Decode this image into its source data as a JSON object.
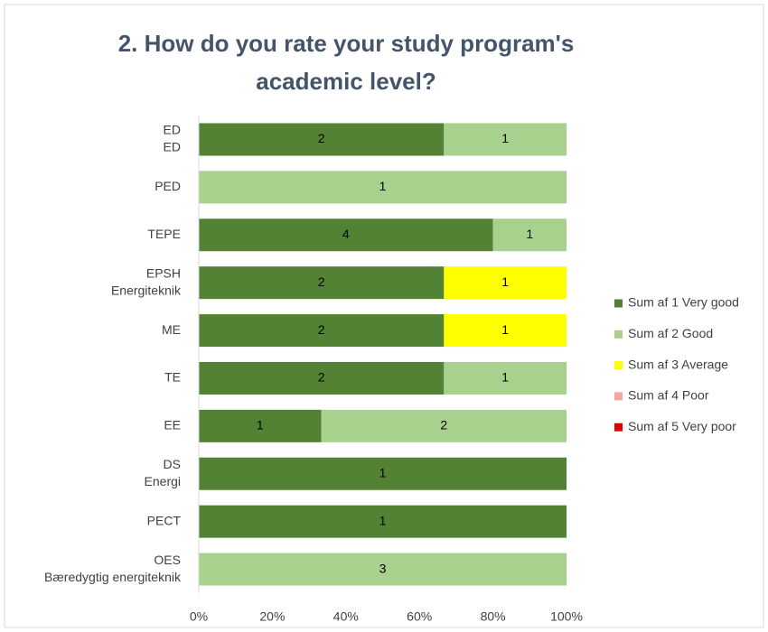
{
  "chart_data": {
    "type": "bar",
    "orientation": "horizontal",
    "stacking": "percent",
    "title": [
      "2. How do you rate your study program's",
      "academic level?"
    ],
    "categories": [
      [
        "ED",
        "ED"
      ],
      [
        "PED"
      ],
      [
        "TEPE"
      ],
      [
        "EPSH",
        "Energiteknik"
      ],
      [
        "ME"
      ],
      [
        "TE"
      ],
      [
        "EE"
      ],
      [
        "DS",
        "Energi"
      ],
      [
        "PECT"
      ],
      [
        "OES",
        "Bæredygtig energiteknik"
      ]
    ],
    "series": [
      {
        "name": "Sum af 1 Very good",
        "color": "#548235",
        "values": [
          2,
          null,
          4,
          2,
          2,
          2,
          1,
          1,
          1,
          null
        ]
      },
      {
        "name": "Sum af 2 Good",
        "color": "#a9d18e",
        "values": [
          1,
          1,
          1,
          null,
          null,
          1,
          2,
          null,
          null,
          3
        ]
      },
      {
        "name": "Sum af 3 Average",
        "color": "#ffff00",
        "values": [
          null,
          null,
          null,
          1,
          1,
          null,
          null,
          null,
          null,
          null
        ]
      },
      {
        "name": "Sum af 4 Poor",
        "color": "#f4a6a6",
        "values": [
          null,
          null,
          null,
          null,
          null,
          null,
          null,
          null,
          null,
          null
        ]
      },
      {
        "name": "Sum af 5 Very poor",
        "color": "#e00000",
        "values": [
          null,
          null,
          null,
          null,
          null,
          null,
          null,
          null,
          null,
          null
        ]
      }
    ],
    "xlim": [
      0,
      100
    ],
    "xticks": [
      {
        "value": 0,
        "label": "0%"
      },
      {
        "value": 20,
        "label": "20%"
      },
      {
        "value": 40,
        "label": "40%"
      },
      {
        "value": 60,
        "label": "60%"
      },
      {
        "value": 80,
        "label": "80%"
      },
      {
        "value": 100,
        "label": "100%"
      }
    ],
    "legend": "right"
  }
}
